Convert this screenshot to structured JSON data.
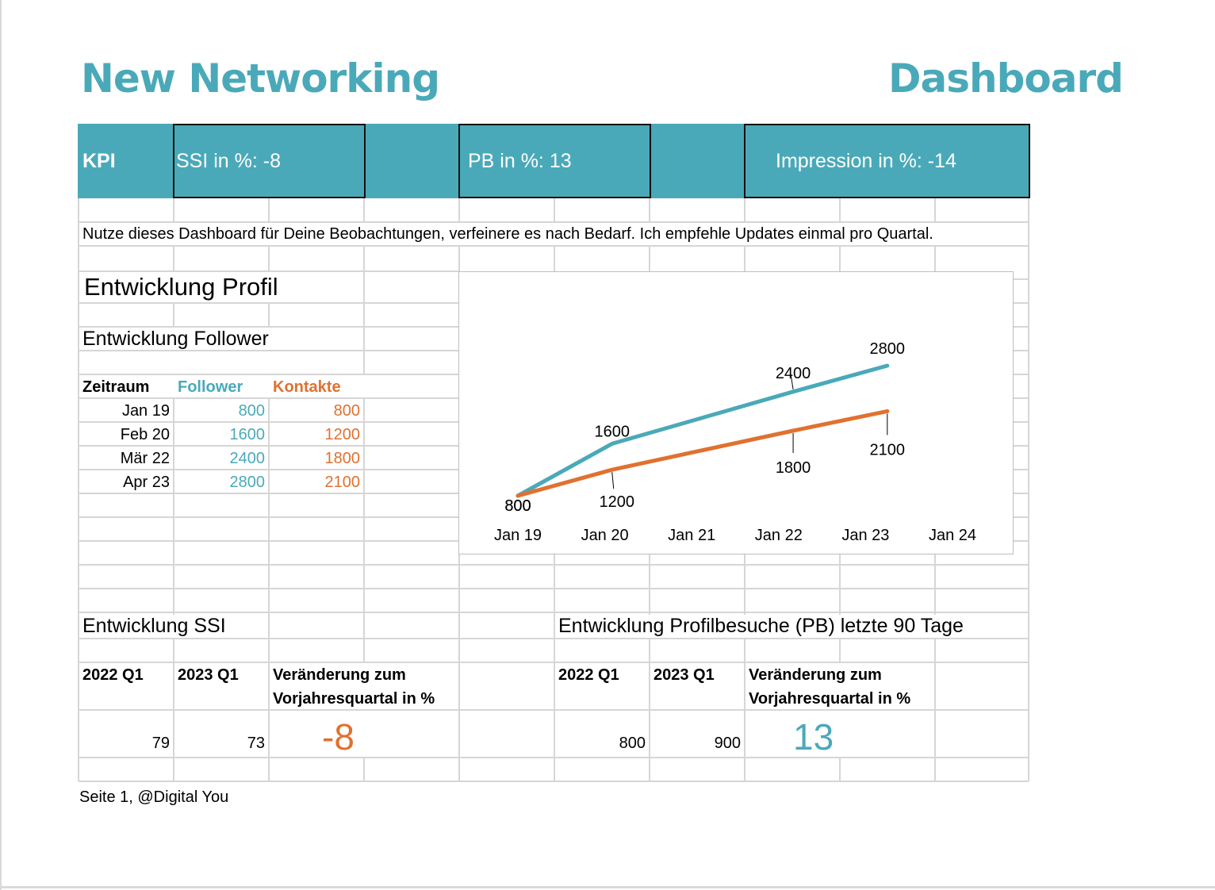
{
  "header": {
    "title_left": "New Networking",
    "title_right": "Dashboard"
  },
  "kpi": {
    "label": "KPI",
    "ssi": "SSI in %: -8",
    "pb": "PB in %: 13",
    "impression": "Impression in %: -14"
  },
  "note": "Nutze dieses Dashboard für Deine Beobachtungen, verfeinere es nach Bedarf. Ich empfehle Updates einmal pro Quartal.",
  "profile": {
    "heading": "Entwicklung Profil",
    "follower_heading": "Entwicklung Follower",
    "table": {
      "headers": [
        "Zeitraum",
        "Follower",
        "Kontakte"
      ],
      "rows": [
        [
          "Jan 19",
          "800",
          "800"
        ],
        [
          "Feb 20",
          "1600",
          "1200"
        ],
        [
          "Mär 22",
          "2400",
          "1800"
        ],
        [
          "Apr 23",
          "2800",
          "2100"
        ]
      ]
    }
  },
  "ssi": {
    "heading": "Entwicklung SSI",
    "col1": "2022 Q1",
    "col2": "2023 Q1",
    "change_line1": "Veränderung zum",
    "change_line2": "Vorjahresquartal in %",
    "val1": "79",
    "val2": "73",
    "change": "-8"
  },
  "pb": {
    "heading": "Entwicklung Profilbesuche (PB) letzte 90 Tage",
    "col1": "2022 Q1",
    "col2": "2023 Q1",
    "change_line1": "Veränderung zum",
    "change_line2": "Vorjahresquartal in %",
    "val1": "800",
    "val2": "900",
    "change": "13"
  },
  "footer": "Seite 1, @Digital You",
  "colors": {
    "teal": "#4aa9b9",
    "orange": "#e07130"
  },
  "chart_data": {
    "type": "line",
    "x_ticks": [
      "Jan 19",
      "Jan 20",
      "Jan 21",
      "Jan 22",
      "Jan 23",
      "Jan 24"
    ],
    "xlim": [
      "2019-01",
      "2024-01"
    ],
    "ylim": [
      800,
      2800
    ],
    "grid": false,
    "series": [
      {
        "name": "",
        "color": "#4aa9b9",
        "x": [
          "2019-01",
          "2020-02",
          "2022-03",
          "2023-04"
        ],
        "values": [
          800,
          1600,
          2400,
          2800
        ],
        "labels": [
          "800",
          "1600",
          "2400",
          "2800"
        ]
      },
      {
        "name": "",
        "color": "#e07130",
        "x": [
          "2019-01",
          "2020-02",
          "2022-03",
          "2023-04"
        ],
        "values": [
          800,
          1200,
          1800,
          2100
        ],
        "labels": [
          "800",
          "1200",
          "1800",
          "2100"
        ]
      }
    ]
  }
}
